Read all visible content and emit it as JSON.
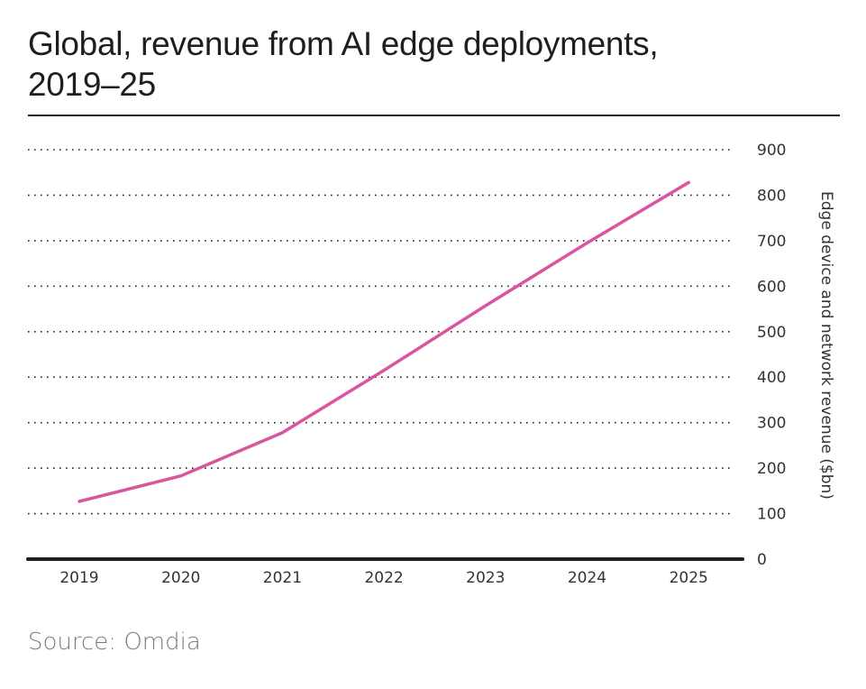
{
  "chart_data": {
    "type": "line",
    "title": "Global, revenue from AI edge deployments, 2019–25",
    "xlabel": "",
    "ylabel": "Edge device and network revenue ($bn)",
    "categories": [
      "2019",
      "2020",
      "2021",
      "2022",
      "2023",
      "2024",
      "2025"
    ],
    "series": [
      {
        "name": "Revenue",
        "values": [
          127,
          183,
          278,
          415,
          557,
          695,
          828
        ],
        "color": "#d9559e"
      }
    ],
    "ylim": [
      0,
      900
    ],
    "yticks": [
      "0",
      "100",
      "200",
      "300",
      "400",
      "500",
      "600",
      "700",
      "800",
      "900"
    ],
    "grid": true,
    "y_axis_side": "right",
    "legend": "none"
  },
  "source": "Source: Omdia"
}
